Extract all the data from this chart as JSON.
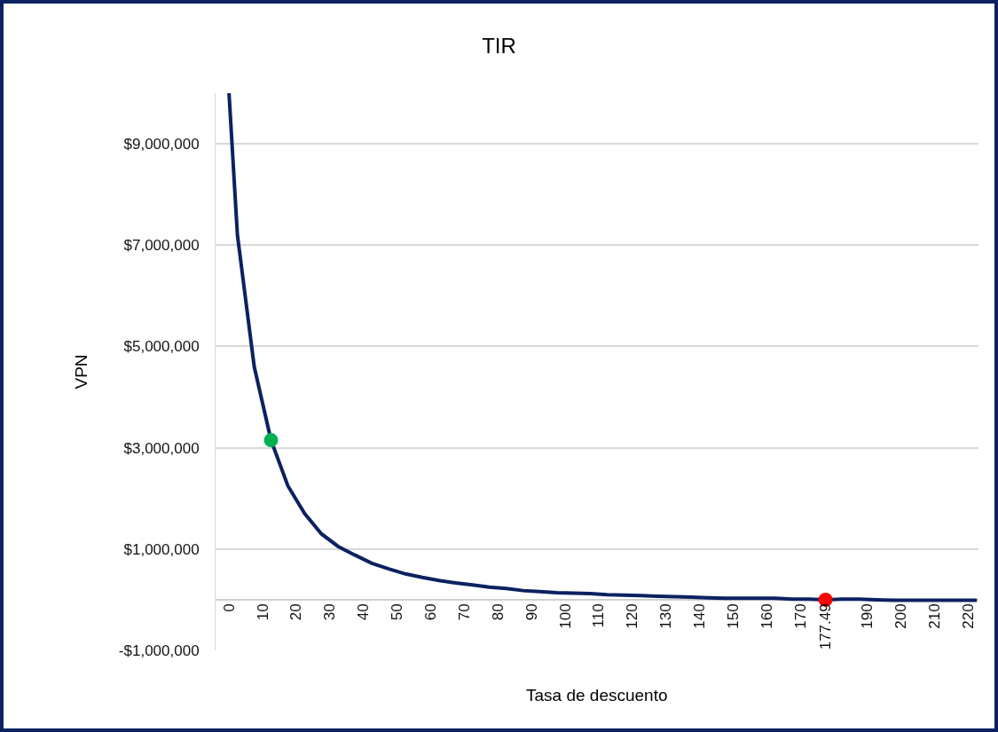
{
  "chart_data": {
    "type": "line",
    "title": "TIR",
    "xlabel": "Tasa de descuento",
    "ylabel": "VPN",
    "series": [
      {
        "marker": "none",
        "color": "#0b2161",
        "x": [
          0,
          2.5,
          7.5,
          12.5,
          17.5,
          22.5,
          27.5,
          32.5,
          37.5,
          42.5,
          47.5,
          52.5,
          57.5,
          62.5,
          67.5,
          72.5,
          77.5,
          82.5,
          87.5,
          92.5,
          97.5,
          102.5,
          107.5,
          112.5,
          117.5,
          122.5,
          127.5,
          132.5,
          137.5,
          142.5,
          147.5,
          152.5,
          157.5,
          162.5,
          167.5,
          172.5,
          177.5,
          182.5,
          187.5,
          192.5,
          197.5,
          202.5,
          207.5,
          212.5,
          217.5,
          222.5
        ],
        "values": [
          10000000,
          7200000,
          4600000,
          3150000,
          2250000,
          1700000,
          1300000,
          1050000,
          880000,
          720000,
          610000,
          510000,
          440000,
          380000,
          330000,
          290000,
          250000,
          220000,
          180000,
          160000,
          140000,
          130000,
          120000,
          100000,
          90000,
          80000,
          70000,
          60000,
          50000,
          40000,
          30000,
          30000,
          30000,
          30000,
          10000,
          10000,
          0,
          10000,
          10000,
          0,
          -10000,
          -10000,
          -10000,
          -10000,
          -10000,
          -10000
        ]
      },
      {
        "type": "scatter",
        "marker": "circle",
        "color": "#00b050",
        "x": [
          12.5
        ],
        "values": [
          3150000
        ]
      },
      {
        "type": "scatter",
        "marker": "circle",
        "color": "#ff0000",
        "x": [
          177.49
        ],
        "values": [
          0
        ]
      }
    ],
    "line_style": "solid",
    "grid": "y",
    "xlim": [
      -4,
      223
    ],
    "xticks": [
      0,
      10,
      20,
      30,
      40,
      50,
      60,
      70,
      80,
      90,
      100,
      110,
      120,
      130,
      140,
      150,
      160,
      170,
      177.49,
      190,
      200,
      210,
      220
    ],
    "ylim": [
      -1000000,
      10000000
    ],
    "yticks": [
      {
        "value": -1000000,
        "label": "-$1,000,000"
      },
      {
        "value": 1000000,
        "label": "$1,000,000"
      },
      {
        "value": 3000000,
        "label": "$3,000,000"
      },
      {
        "value": 5000000,
        "label": "$5,000,000"
      },
      {
        "value": 7000000,
        "label": "$7,000,000"
      },
      {
        "value": 9000000,
        "label": "$9,000,000"
      }
    ]
  }
}
